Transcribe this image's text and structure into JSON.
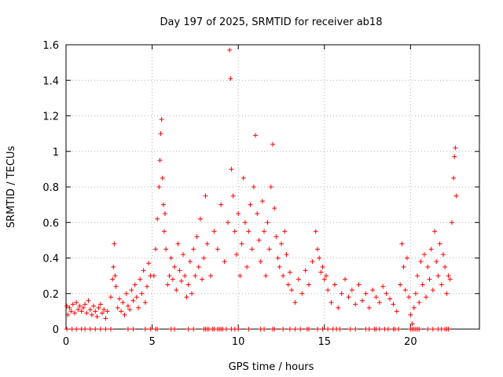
{
  "chart_data": {
    "type": "scatter",
    "title": "Day 197 of 2025, SRMTID for receiver ab18",
    "xlabel": "GPS time / hours",
    "ylabel": "SRMTID / TECUs",
    "xlim": [
      0,
      24
    ],
    "ylim": [
      0,
      1.6
    ],
    "xticks": [
      0,
      5,
      10,
      15,
      20
    ],
    "xtick_labels": [
      "0",
      "5",
      "10",
      "15",
      "20"
    ],
    "yticks": [
      0,
      0.2,
      0.4,
      0.6,
      0.8,
      1,
      1.2,
      1.4,
      1.6
    ],
    "ytick_labels": [
      "0",
      "0.2",
      "0.4",
      "0.6",
      "0.8",
      "1",
      "1.2",
      "1.4",
      "1.6"
    ],
    "grid": true,
    "legend": "none",
    "marker": "plus",
    "series": [
      {
        "name": "SRMTID",
        "color": "#ff0000",
        "x": [
          0.05,
          0.1,
          0.2,
          0.3,
          0.4,
          0.5,
          0.6,
          0.7,
          0.8,
          0.9,
          1.0,
          1.1,
          1.2,
          1.3,
          1.4,
          1.5,
          1.6,
          1.7,
          1.8,
          1.9,
          2.0,
          2.1,
          2.2,
          2.3,
          2.4,
          2.6,
          2.7,
          2.75,
          2.8,
          2.85,
          2.9,
          3.0,
          3.1,
          3.2,
          3.3,
          3.4,
          3.5,
          3.6,
          3.7,
          3.8,
          3.9,
          4.0,
          4.1,
          4.2,
          4.3,
          4.4,
          4.5,
          4.6,
          4.7,
          4.8,
          4.9,
          5.1,
          5.2,
          5.3,
          5.4,
          5.45,
          5.5,
          5.55,
          5.6,
          5.65,
          5.7,
          5.75,
          5.8,
          5.9,
          6.0,
          6.1,
          6.2,
          6.3,
          6.4,
          6.5,
          6.6,
          6.7,
          6.8,
          6.9,
          7.0,
          7.1,
          7.2,
          7.3,
          7.4,
          7.5,
          7.6,
          7.7,
          7.8,
          7.9,
          8.0,
          8.1,
          8.2,
          8.4,
          8.6,
          8.8,
          9.0,
          9.2,
          9.4,
          9.5,
          9.55,
          9.6,
          9.7,
          9.8,
          9.9,
          10.0,
          10.1,
          10.2,
          10.3,
          10.4,
          10.5,
          10.6,
          10.7,
          10.8,
          10.9,
          11.0,
          11.1,
          11.2,
          11.3,
          11.4,
          11.5,
          11.6,
          11.7,
          11.8,
          11.9,
          12.0,
          12.1,
          12.2,
          12.3,
          12.4,
          12.5,
          12.6,
          12.7,
          12.8,
          12.9,
          13.0,
          13.1,
          13.3,
          13.5,
          13.7,
          13.9,
          14.1,
          14.3,
          14.5,
          14.6,
          14.7,
          14.8,
          14.9,
          15.0,
          15.1,
          15.2,
          15.4,
          15.6,
          15.8,
          16.0,
          16.2,
          16.4,
          16.6,
          16.8,
          17.0,
          17.2,
          17.4,
          17.6,
          17.8,
          18.0,
          18.2,
          18.4,
          18.6,
          18.8,
          19.0,
          19.2,
          19.4,
          19.5,
          19.6,
          19.7,
          19.8,
          19.9,
          20.0,
          20.1,
          20.2,
          20.3,
          20.4,
          20.5,
          20.6,
          20.7,
          20.8,
          20.9,
          21.0,
          21.1,
          21.2,
          21.3,
          21.4,
          21.5,
          21.6,
          21.7,
          21.8,
          21.9,
          22.0,
          22.1,
          22.2,
          22.3,
          22.4,
          22.5,
          22.55,
          22.6,
          22.65
        ],
        "y": [
          0.13,
          0.08,
          0.12,
          0.1,
          0.14,
          0.09,
          0.15,
          0.11,
          0.13,
          0.1,
          0.12,
          0.14,
          0.09,
          0.16,
          0.11,
          0.08,
          0.13,
          0.1,
          0.07,
          0.12,
          0.14,
          0.09,
          0.11,
          0.06,
          0.1,
          0.18,
          0.28,
          0.35,
          0.48,
          0.3,
          0.24,
          0.12,
          0.17,
          0.1,
          0.15,
          0.08,
          0.2,
          0.13,
          0.11,
          0.22,
          0.16,
          0.25,
          0.18,
          0.12,
          0.28,
          0.2,
          0.33,
          0.15,
          0.24,
          0.37,
          0.3,
          0.3,
          0.45,
          0.62,
          0.8,
          0.95,
          1.1,
          1.18,
          0.85,
          0.7,
          0.55,
          0.65,
          0.45,
          0.25,
          0.3,
          0.4,
          0.28,
          0.35,
          0.22,
          0.48,
          0.33,
          0.27,
          0.42,
          0.3,
          0.18,
          0.25,
          0.38,
          0.2,
          0.45,
          0.3,
          0.52,
          0.35,
          0.62,
          0.28,
          0.4,
          0.75,
          0.48,
          0.3,
          0.55,
          0.45,
          0.7,
          0.38,
          0.6,
          1.57,
          1.41,
          0.9,
          0.75,
          0.55,
          0.42,
          0.65,
          0.3,
          0.48,
          0.85,
          0.6,
          0.35,
          0.55,
          0.7,
          0.45,
          0.8,
          1.09,
          0.65,
          0.5,
          0.38,
          0.72,
          0.55,
          0.3,
          0.6,
          0.45,
          0.8,
          1.04,
          0.68,
          0.52,
          0.4,
          0.35,
          0.48,
          0.3,
          0.55,
          0.42,
          0.25,
          0.32,
          0.22,
          0.15,
          0.28,
          0.2,
          0.33,
          0.25,
          0.38,
          0.55,
          0.45,
          0.4,
          0.32,
          0.35,
          0.28,
          0.3,
          0.22,
          0.15,
          0.25,
          0.12,
          0.2,
          0.28,
          0.18,
          0.22,
          0.14,
          0.25,
          0.16,
          0.2,
          0.12,
          0.22,
          0.18,
          0.15,
          0.24,
          0.2,
          0.17,
          0.14,
          0.1,
          0.25,
          0.48,
          0.35,
          0.22,
          0.4,
          0.18,
          0.08,
          0.03,
          0.12,
          0.2,
          0.3,
          0.15,
          0.38,
          0.25,
          0.42,
          0.18,
          0.35,
          0.28,
          0.45,
          0.22,
          0.55,
          0.38,
          0.3,
          0.48,
          0.25,
          0.42,
          0.35,
          0.2,
          0.3,
          0.28,
          0.6,
          0.85,
          0.97,
          1.02,
          0.75
        ],
        "zero_points_x": [
          0.05,
          0.35,
          0.6,
          0.9,
          1.1,
          1.4,
          1.7,
          2.0,
          2.3,
          2.6,
          3.6,
          3.9,
          4.6,
          4.9,
          5.2,
          5.3,
          6.1,
          6.3,
          7.1,
          7.4,
          8.0,
          8.1,
          8.2,
          8.3,
          8.5,
          8.6,
          8.8,
          8.9,
          9.0,
          9.1,
          9.3,
          9.6,
          9.8,
          10.0,
          10.6,
          11.3,
          11.5,
          12.0,
          12.1,
          12.6,
          13.0,
          13.3,
          13.6,
          14.0,
          14.1,
          14.6,
          14.9,
          15.2,
          15.5,
          15.7,
          15.9,
          16.5,
          16.8,
          17.4,
          17.6,
          17.9,
          18.0,
          18.2,
          18.5,
          18.7,
          19.0,
          19.1,
          19.3,
          20.0,
          20.1,
          20.2,
          20.3,
          20.4,
          20.5,
          21.0,
          21.3,
          21.6,
          21.8,
          22.0,
          22.1,
          22.2
        ]
      }
    ]
  }
}
